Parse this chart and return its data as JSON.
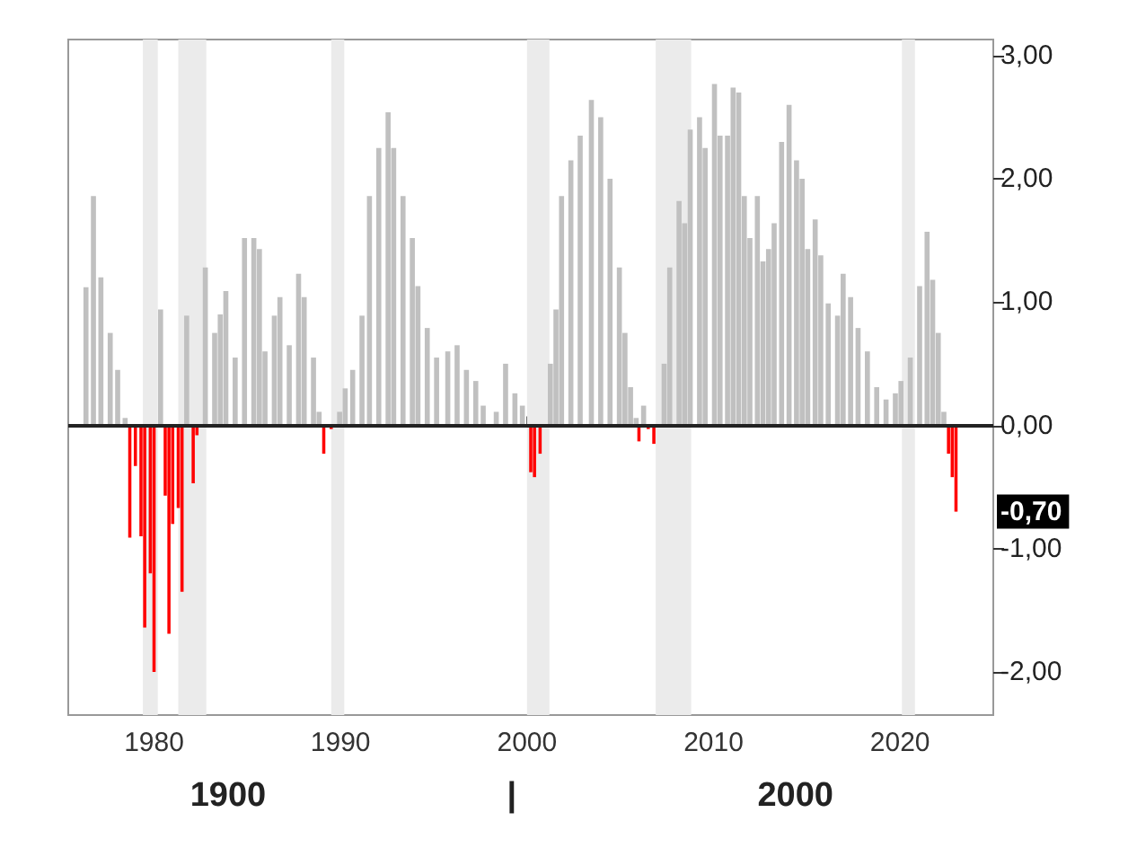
{
  "chart_data": {
    "type": "bar",
    "xlim": [
      1975.4,
      2025
    ],
    "xticks": [
      1980,
      1990,
      2000,
      2010,
      2020
    ],
    "ylim": [
      -2.35,
      3.13
    ],
    "yticks": [
      {
        "value": -2,
        "label": "-2,00"
      },
      {
        "value": -1,
        "label": "-1,00"
      },
      {
        "value": 0,
        "label": "0,00"
      },
      {
        "value": 1,
        "label": "1,00"
      },
      {
        "value": 2,
        "label": "2,00"
      },
      {
        "value": 3,
        "label": "3,00"
      }
    ],
    "series": [
      {
        "color": "#c0c0c0",
        "x": [
          1976.3,
          1976.7,
          1977.1,
          1977.6,
          1978.0,
          1978.4,
          1980.3,
          1981.7,
          1982.7,
          1983.2,
          1983.5,
          1983.8,
          1984.3,
          1984.8,
          1985.3,
          1985.6,
          1985.9,
          1986.4,
          1986.7,
          1987.2,
          1987.7,
          1988.0,
          1988.5,
          1988.8,
          1989.9,
          1990.2,
          1990.6,
          1991.1,
          1991.5,
          1992.0,
          1992.5,
          1992.8,
          1993.3,
          1993.8,
          1994.1,
          1994.6,
          1995.1,
          1995.7,
          1996.2,
          1996.7,
          1997.2,
          1997.6,
          1998.3,
          1998.8,
          1999.3,
          1999.7,
          2001.2,
          2001.5,
          2001.8,
          2002.3,
          2002.8,
          2003.4,
          2003.9,
          2004.4,
          2004.9,
          2005.2,
          2005.5,
          2005.8,
          2006.2,
          2007.3,
          2007.6,
          2008.1,
          2008.4,
          2008.7,
          2009.2,
          2009.5,
          2010.0,
          2010.3,
          2010.7,
          2011.0,
          2011.3,
          2011.6,
          2011.9,
          2012.3,
          2012.6,
          2012.9,
          2013.2,
          2013.6,
          2014.0,
          2014.4,
          2014.7,
          2015.0,
          2015.4,
          2015.7,
          2016.1,
          2016.6,
          2016.9,
          2017.3,
          2017.7,
          2018.2,
          2018.7,
          2019.2,
          2019.7,
          2020.0,
          2020.5,
          2021.0,
          2021.4,
          2021.7,
          2022.0,
          2022.3
        ],
        "values": [
          1.12,
          1.86,
          1.2,
          0.75,
          0.45,
          0.06,
          0.94,
          0.89,
          1.28,
          0.75,
          0.9,
          1.09,
          0.55,
          1.52,
          1.52,
          1.43,
          0.6,
          0.89,
          1.04,
          0.65,
          1.23,
          1.04,
          0.55,
          0.11,
          0.11,
          0.3,
          0.45,
          0.89,
          1.86,
          2.25,
          2.54,
          2.25,
          1.86,
          1.52,
          1.13,
          0.79,
          0.55,
          0.6,
          0.65,
          0.45,
          0.36,
          0.16,
          0.11,
          0.5,
          0.26,
          0.16,
          0.5,
          0.94,
          1.86,
          2.15,
          2.35,
          2.64,
          2.5,
          2.0,
          1.28,
          0.75,
          0.31,
          0.06,
          0.16,
          0.5,
          1.28,
          1.82,
          1.64,
          2.4,
          2.5,
          2.25,
          2.77,
          2.35,
          2.35,
          2.74,
          2.7,
          1.86,
          1.52,
          1.86,
          1.33,
          1.43,
          1.64,
          2.3,
          2.6,
          2.15,
          2.0,
          1.43,
          1.67,
          1.38,
          0.99,
          0.89,
          1.23,
          1.04,
          0.79,
          0.6,
          0.31,
          0.21,
          0.26,
          0.36,
          0.55,
          1.13,
          1.57,
          1.18,
          0.75,
          0.11
        ]
      },
      {
        "color": "#ff0000",
        "x": [
          1978.7,
          1979.0,
          1979.3,
          1979.5,
          1979.8,
          1980.0,
          1980.6,
          1980.8,
          1981.0,
          1981.3,
          1981.5,
          1982.1,
          1982.3,
          1989.1,
          1989.5,
          2000.2,
          2000.4,
          2000.7,
          2006.0,
          2006.5,
          2006.8,
          2022.6,
          2022.8,
          2023.0
        ],
        "values": [
          -0.91,
          -0.33,
          -0.9,
          -1.64,
          -1.2,
          -2.0,
          -0.57,
          -1.69,
          -0.8,
          -0.67,
          -1.35,
          -0.47,
          -0.08,
          -0.23,
          -0.03,
          -0.38,
          -0.42,
          -0.23,
          -0.13,
          -0.03,
          -0.15,
          -0.23,
          -0.42,
          -0.7
        ]
      }
    ],
    "bands": [
      {
        "axis": "x",
        "from": 1979.4,
        "to": 1980.2,
        "color": "#ebebeb"
      },
      {
        "axis": "x",
        "from": 1981.3,
        "to": 1982.8,
        "color": "#ebebeb"
      },
      {
        "axis": "x",
        "from": 1989.5,
        "to": 1990.2,
        "color": "#ebebeb"
      },
      {
        "axis": "x",
        "from": 2000.0,
        "to": 2001.2,
        "color": "#ebebeb"
      },
      {
        "axis": "x",
        "from": 2006.9,
        "to": 2008.8,
        "color": "#ebebeb"
      },
      {
        "axis": "x",
        "from": 2020.1,
        "to": 2020.8,
        "color": "#ebebeb"
      }
    ],
    "ref_lines": [
      {
        "axis": "y",
        "value": 0,
        "color": "#222222"
      }
    ],
    "annotations": [
      {
        "text": "-0,70",
        "y": -0.7
      },
      "1900",
      "|",
      "2000"
    ]
  }
}
